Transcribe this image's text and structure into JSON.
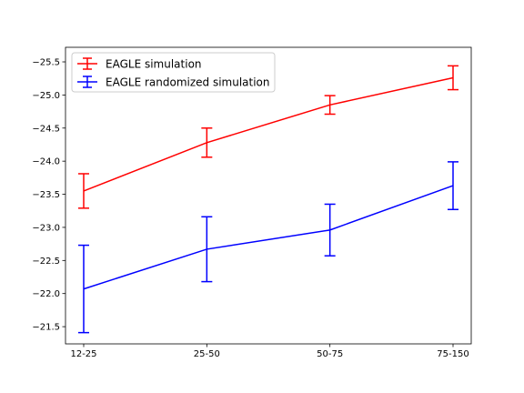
{
  "chart_data": {
    "type": "line",
    "title": "",
    "xlabel": "",
    "ylabel": "",
    "y_axis_inverted": true,
    "ylim": [
      -21.24,
      -25.72
    ],
    "categories": [
      "12-25",
      "25-50",
      "50-75",
      "75-150"
    ],
    "yticks": [
      -21.5,
      -22.0,
      -22.5,
      -23.0,
      -23.5,
      -24.0,
      -24.5,
      -25.0,
      -25.5
    ],
    "ytick_labels": [
      "−21.5",
      "−22.0",
      "−22.5",
      "−23.0",
      "−23.5",
      "−24.0",
      "−24.5",
      "−25.0",
      "−25.5"
    ],
    "legend_position": "upper-left",
    "grid": false,
    "series": [
      {
        "name": "EAGLE simulation",
        "color": "#ff0000",
        "values": [
          -23.55,
          -24.28,
          -24.85,
          -25.26
        ],
        "errors": [
          0.26,
          0.22,
          0.14,
          0.18
        ]
      },
      {
        "name": "EAGLE randomized simulation",
        "color": "#0000ff",
        "values": [
          -22.07,
          -22.67,
          -22.96,
          -23.63
        ],
        "errors": [
          0.66,
          0.49,
          0.39,
          0.36
        ]
      }
    ]
  }
}
